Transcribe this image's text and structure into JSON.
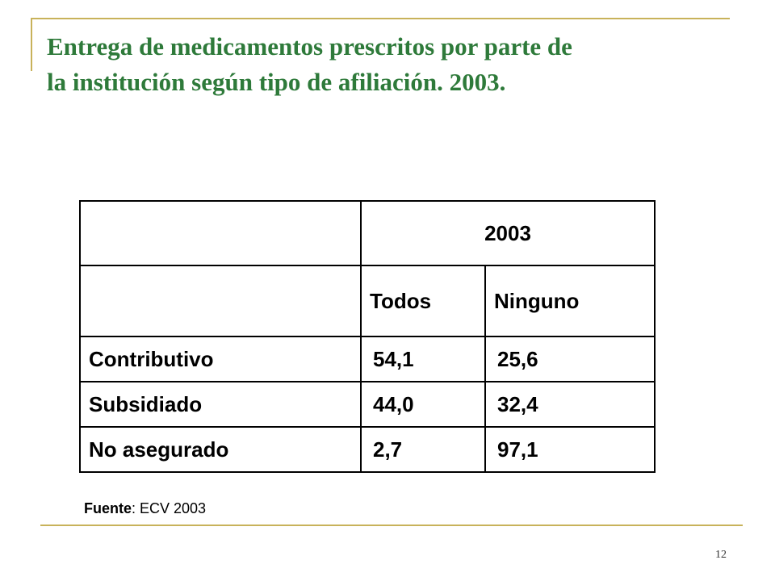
{
  "slide": {
    "title_line1": "Entrega de medicamentos prescritos por parte de",
    "title_line2": "la institución según tipo de afiliación. 2003.",
    "page_number": "12"
  },
  "table": {
    "year_header": "2003",
    "col_todos": "Todos",
    "col_ninguno": "Ninguno",
    "rows": [
      {
        "label": "Contributivo",
        "todos": "54,1",
        "ninguno": "25,6"
      },
      {
        "label": "Subsidiado",
        "todos": "44,0",
        "ninguno": "32,4"
      },
      {
        "label": "No asegurado",
        "todos": "2,7",
        "ninguno": "97,1"
      }
    ]
  },
  "source": {
    "label": "Fuente",
    "text": ": ECV 2003"
  },
  "colors": {
    "title": "#2e7a3a",
    "rule": "#c8b25a"
  }
}
